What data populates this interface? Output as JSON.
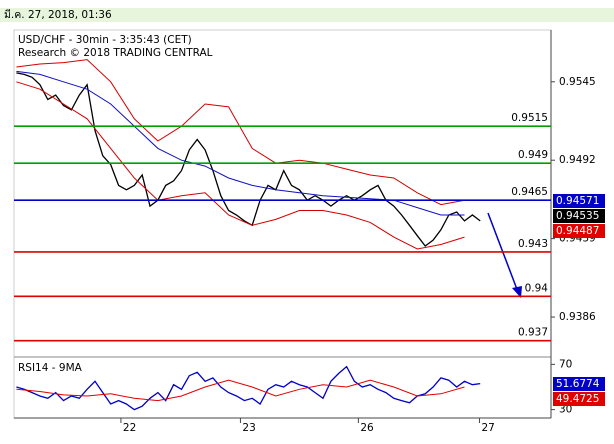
{
  "header": {
    "timestamp": "มี.ค. 27, 2018, 01:36"
  },
  "chart_data": [
    {
      "type": "line",
      "title": "USD/CHF - 30min - 3:35:43 (CET)",
      "subtitle": "Research © 2018 TRADING CENTRAL",
      "x": [
        0,
        1,
        2,
        3,
        4,
        5,
        6,
        7,
        8,
        9,
        10,
        11,
        12,
        13,
        14,
        15,
        16,
        17,
        18,
        19,
        20,
        21,
        22,
        23,
        24,
        25,
        26,
        27,
        28,
        29,
        30,
        31,
        32,
        33,
        34,
        35,
        36,
        37,
        38,
        39,
        40,
        41,
        42,
        43,
        44,
        45,
        46,
        47,
        48,
        49,
        50,
        51,
        52,
        53,
        54,
        55,
        56,
        57,
        58,
        59
      ],
      "xlim": [
        -0.3,
        68
      ],
      "xticks": [
        {
          "value": 13.3,
          "label": "22"
        },
        {
          "value": 28.5,
          "label": "23"
        },
        {
          "value": 43.5,
          "label": "26"
        },
        {
          "value": 58.9,
          "label": "27"
        }
      ],
      "ylim": [
        0.9359,
        0.958
      ],
      "yticks": [
        0.9545,
        0.9492,
        0.9439,
        0.9386
      ],
      "series": [
        {
          "name": "USD/CHF",
          "color": "#000000",
          "values": [
            0.9551,
            0.955,
            0.9548,
            0.9543,
            0.9533,
            0.9536,
            0.9529,
            0.9526,
            0.9536,
            0.9543,
            0.9512,
            0.9495,
            0.9489,
            0.9475,
            0.9472,
            0.9475,
            0.9482,
            0.9461,
            0.9465,
            0.9475,
            0.9478,
            0.9485,
            0.9499,
            0.9506,
            0.9499,
            0.9485,
            0.9468,
            0.9458,
            0.9455,
            0.9451,
            0.9448,
            0.9465,
            0.9475,
            0.9472,
            0.9485,
            0.9475,
            0.9472,
            0.9465,
            0.9468,
            0.9465,
            0.9461,
            0.9465,
            0.9468,
            0.9465,
            0.9468,
            0.9472,
            0.9475,
            0.9465,
            0.9461,
            0.9455,
            0.9448,
            0.9441,
            0.9434,
            0.9438,
            0.9445,
            0.9455,
            0.9457,
            0.9451,
            0.9455,
            0.9451
          ]
        },
        {
          "name": "Upper band",
          "color": "#d40000",
          "x": [
            0,
            3,
            6,
            9,
            12,
            15,
            18,
            21,
            24,
            27,
            30,
            33,
            36,
            39,
            42,
            45,
            48,
            51,
            54,
            57
          ],
          "values": [
            0.9555,
            0.9557,
            0.9558,
            0.956,
            0.9545,
            0.952,
            0.9505,
            0.9515,
            0.953,
            0.9528,
            0.95,
            0.949,
            0.9492,
            0.949,
            0.9486,
            0.9482,
            0.948,
            0.947,
            0.9462,
            0.9465
          ]
        },
        {
          "name": "Middle band",
          "color": "#1010c0",
          "x": [
            0,
            3,
            6,
            9,
            12,
            15,
            18,
            21,
            24,
            27,
            30,
            33,
            36,
            39,
            42,
            45,
            48,
            51,
            54,
            57
          ],
          "values": [
            0.9552,
            0.955,
            0.9545,
            0.954,
            0.953,
            0.9515,
            0.95,
            0.9492,
            0.9488,
            0.948,
            0.9475,
            0.9472,
            0.947,
            0.9468,
            0.9467,
            0.9466,
            0.9465,
            0.946,
            0.9455,
            0.9455
          ]
        },
        {
          "name": "Lower band",
          "color": "#d40000",
          "x": [
            0,
            3,
            6,
            9,
            12,
            15,
            18,
            21,
            24,
            27,
            30,
            33,
            36,
            39,
            42,
            45,
            48,
            51,
            54,
            57
          ],
          "values": [
            0.9545,
            0.954,
            0.953,
            0.952,
            0.95,
            0.948,
            0.9465,
            0.9468,
            0.947,
            0.9455,
            0.9448,
            0.9452,
            0.9458,
            0.9458,
            0.9455,
            0.945,
            0.944,
            0.9432,
            0.9435,
            0.944
          ]
        }
      ],
      "levels": [
        {
          "value": 0.9515,
          "color": "#00a000"
        },
        {
          "value": 0.949,
          "color": "#00a000"
        },
        {
          "value": 0.9465,
          "color": "#0000c8"
        },
        {
          "value": 0.943,
          "color": "#e00000"
        },
        {
          "value": 0.94,
          "color": "#e00000"
        },
        {
          "value": 0.937,
          "color": "#e00000"
        }
      ],
      "price_tags": [
        {
          "value": 0.94571,
          "color": "#0000c8"
        },
        {
          "value": 0.94535,
          "color": "#000000"
        },
        {
          "value": 0.94487,
          "color": "#e00000"
        }
      ]
    },
    {
      "type": "line",
      "title": "RSI14 - 9MA",
      "ylim": [
        22.6,
        76.5
      ],
      "yticks": [
        70,
        30
      ],
      "series": [
        {
          "name": "RSI14",
          "color": "#0000c8",
          "values": [
            50,
            48,
            45,
            42,
            40,
            45,
            38,
            42,
            40,
            48,
            55,
            45,
            35,
            38,
            35,
            30,
            33,
            40,
            45,
            38,
            52,
            48,
            60,
            63,
            55,
            58,
            50,
            45,
            42,
            38,
            40,
            35,
            48,
            52,
            50,
            55,
            52,
            50,
            45,
            40,
            55,
            62,
            68,
            55,
            50,
            52,
            48,
            45,
            40,
            38,
            36,
            42,
            44,
            50,
            58,
            56,
            50,
            55,
            52,
            53
          ]
        },
        {
          "name": "9MA",
          "color": "#e00000",
          "x": [
            0,
            3,
            6,
            9,
            12,
            15,
            18,
            21,
            24,
            27,
            30,
            33,
            36,
            39,
            42,
            45,
            48,
            51,
            54,
            57
          ],
          "values": [
            48,
            46,
            43,
            42,
            44,
            40,
            38,
            42,
            50,
            56,
            50,
            42,
            48,
            52,
            50,
            56,
            50,
            42,
            44,
            50
          ]
        }
      ],
      "price_tags": [
        {
          "value": 51.6774,
          "color": "#0000c8"
        },
        {
          "value": 49.4725,
          "color": "#e00000"
        }
      ]
    }
  ]
}
